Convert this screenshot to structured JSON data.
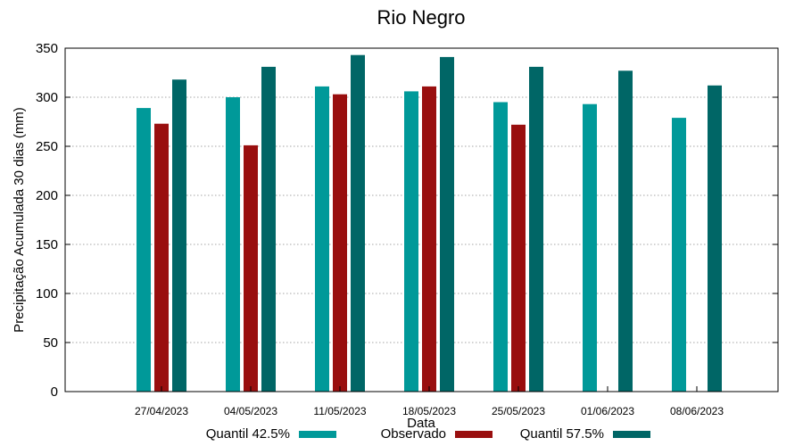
{
  "chart_data": {
    "type": "bar",
    "title": "Rio Negro",
    "xlabel": "Data",
    "ylabel": "Precipitação Acumulada 30 dias (mm)",
    "ylim": [
      0,
      350
    ],
    "yticks": [
      0,
      50,
      100,
      150,
      200,
      250,
      300,
      350
    ],
    "categories": [
      "27/04/2023",
      "04/05/2023",
      "11/05/2023",
      "18/05/2023",
      "25/05/2023",
      "01/06/2023",
      "08/06/2023"
    ],
    "series": [
      {
        "name": "Quantil 42.5%",
        "color": "#009999",
        "values": [
          289,
          300,
          311,
          306,
          295,
          293,
          279
        ]
      },
      {
        "name": "Observado",
        "color": "#990f0f",
        "values": [
          273,
          251,
          303,
          311,
          272,
          null,
          null
        ]
      },
      {
        "name": "Quantil 57.5%",
        "color": "#006666",
        "values": [
          318,
          331,
          343,
          341,
          331,
          327,
          312
        ]
      }
    ],
    "legend_position": "bottom",
    "grid": true
  }
}
